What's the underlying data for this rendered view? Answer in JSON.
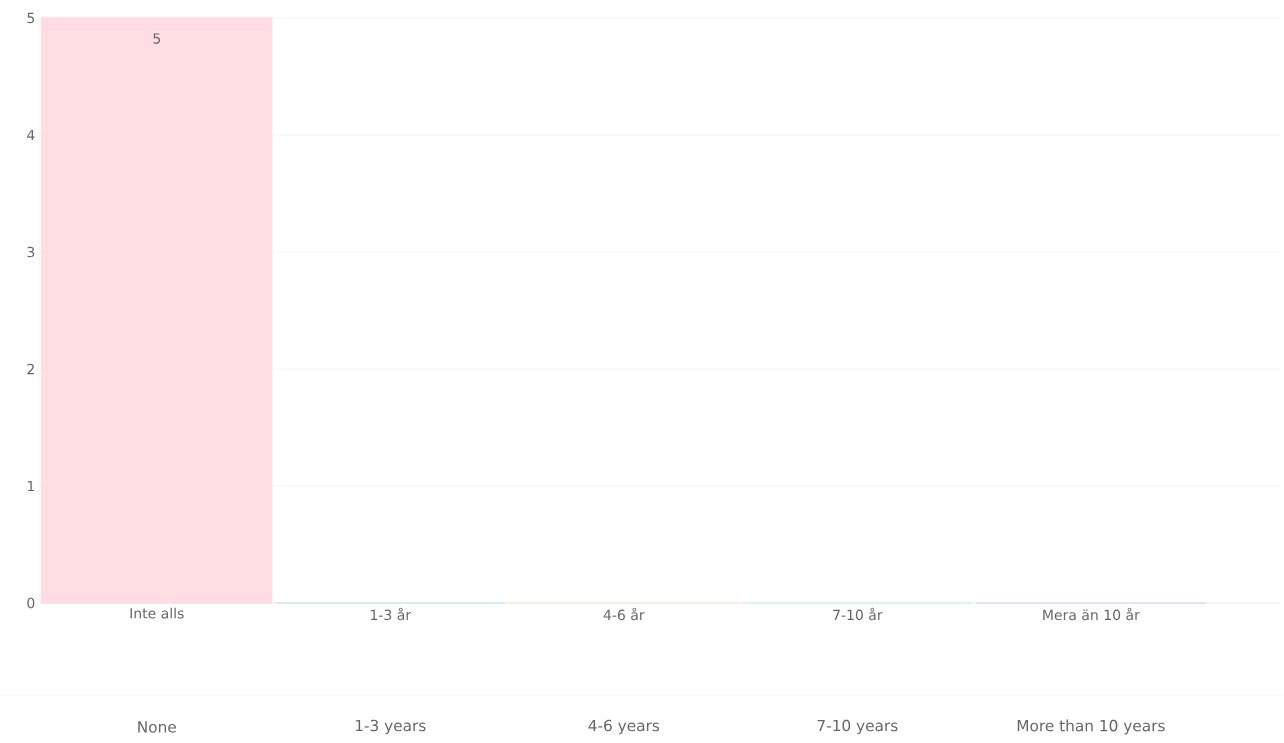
{
  "chart_data": {
    "type": "bar",
    "categories": [
      "Inte alls",
      "1-3 år",
      "4-6 år",
      "7-10 år",
      "Mera än 10 år"
    ],
    "values": [
      5,
      0,
      0,
      0,
      0
    ],
    "colors": [
      "#ffdde3",
      "#cfe8f9",
      "#ffe7cf",
      "#d3f0f0",
      "#e3d9ff"
    ],
    "value_labels": [
      "5",
      null,
      null,
      null,
      null
    ],
    "ylim": [
      0,
      5
    ],
    "yticks": [
      0,
      1,
      2,
      3,
      4,
      5
    ],
    "grid": "y",
    "annotations": [
      "None",
      "1-3 years",
      "4-6 years",
      "7-10 years",
      "More than 10 years"
    ]
  }
}
